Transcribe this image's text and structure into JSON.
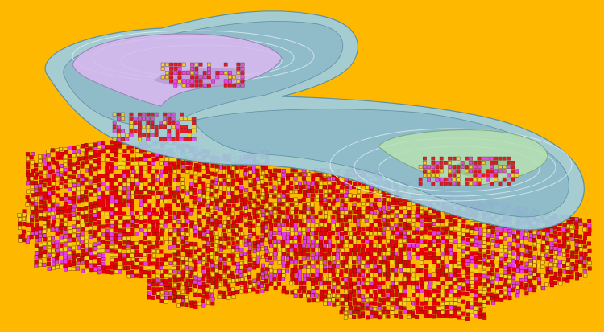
{
  "scene": {
    "background_color": "#FFB800",
    "block_colors": {
      "high_grade": "#E8000A",
      "medium_grade": "#E63BE6",
      "low_grade": "#F2D21A"
    },
    "block_mix": {
      "high_grade": 0.6,
      "medium_grade": 0.13,
      "low_grade": 0.27
    },
    "pit_shell_colors": {
      "outer_shell": "#9CCDE3",
      "shell_outline": "#5E8FA6",
      "inner_pit_west": "#D9B8F0",
      "inner_pit_east": "#B6E0B2"
    },
    "objects": [
      "ore-block-model",
      "outer-pit-shell",
      "inner-pit-west",
      "inner-pit-east"
    ]
  }
}
